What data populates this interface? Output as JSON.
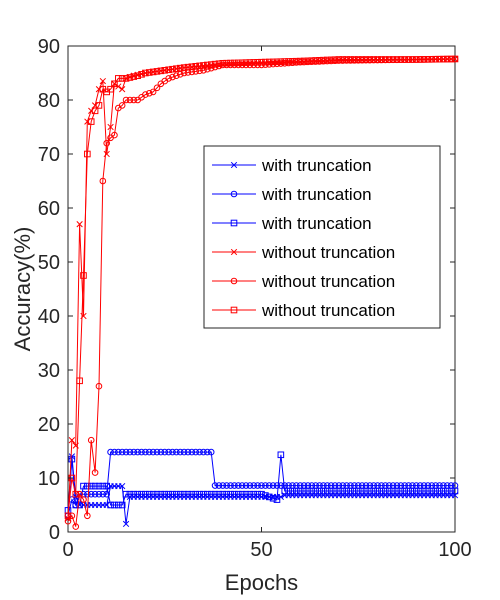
{
  "chart_data": {
    "type": "line",
    "title": "",
    "xlabel": "Epochs",
    "ylabel": "Accuracy(%)",
    "xlim": [
      0,
      100
    ],
    "ylim": [
      0,
      90
    ],
    "xticks": [
      0,
      50,
      100
    ],
    "yticks": [
      0,
      10,
      20,
      30,
      40,
      50,
      60,
      70,
      80,
      90
    ],
    "grid": false,
    "legend_position": "center-right",
    "colors": {
      "with": "#0000ff",
      "without": "#ff0000",
      "axis": "#262626"
    },
    "series": [
      {
        "name": "with truncation",
        "color": "#0000ff",
        "marker": "x",
        "points": [
          [
            0,
            2.5
          ],
          [
            1,
            14
          ],
          [
            2,
            6.5
          ],
          [
            3,
            5
          ],
          [
            4,
            5
          ],
          [
            5,
            5
          ],
          [
            10,
            5
          ],
          [
            11,
            8.5
          ],
          [
            14,
            8.5
          ],
          [
            15,
            1.5
          ],
          [
            16,
            6.5
          ],
          [
            20,
            6.5
          ],
          [
            50,
            6.5
          ],
          [
            55,
            6.5
          ],
          [
            56,
            6.8
          ],
          [
            100,
            6.8
          ]
        ]
      },
      {
        "name": "with truncation",
        "color": "#0000ff",
        "marker": "o",
        "points": [
          [
            0,
            3
          ],
          [
            1,
            6
          ],
          [
            2,
            5
          ],
          [
            3,
            7
          ],
          [
            4,
            7
          ],
          [
            5,
            7
          ],
          [
            10,
            7
          ],
          [
            11,
            14.8
          ],
          [
            37,
            14.8
          ],
          [
            38,
            8.6
          ],
          [
            100,
            8.6
          ]
        ]
      },
      {
        "name": "with truncation",
        "color": "#0000ff",
        "marker": "s",
        "points": [
          [
            0,
            4
          ],
          [
            1,
            13.5
          ],
          [
            2,
            5
          ],
          [
            3,
            5
          ],
          [
            4,
            8.5
          ],
          [
            5,
            8.5
          ],
          [
            10,
            8.5
          ],
          [
            11,
            5
          ],
          [
            14,
            5
          ],
          [
            15,
            7
          ],
          [
            50,
            7
          ],
          [
            54,
            6
          ],
          [
            55,
            14.3
          ],
          [
            56,
            7.6
          ],
          [
            100,
            7.6
          ]
        ]
      },
      {
        "name": "without truncation",
        "color": "#ff0000",
        "marker": "x",
        "points": [
          [
            0,
            2.5
          ],
          [
            1,
            17
          ],
          [
            2,
            16
          ],
          [
            3,
            57
          ],
          [
            4,
            40
          ],
          [
            5,
            76
          ],
          [
            6,
            78
          ],
          [
            7,
            79
          ],
          [
            8,
            82
          ],
          [
            9,
            83.5
          ],
          [
            10,
            70
          ],
          [
            11,
            75
          ],
          [
            12,
            83
          ],
          [
            13,
            82.5
          ],
          [
            14,
            82
          ],
          [
            15,
            84
          ],
          [
            17,
            84.5
          ],
          [
            20,
            85
          ],
          [
            25,
            85.5
          ],
          [
            30,
            86
          ],
          [
            40,
            86.5
          ],
          [
            50,
            86.8
          ],
          [
            60,
            87
          ],
          [
            70,
            87.3
          ],
          [
            80,
            87.4
          ],
          [
            90,
            87.5
          ],
          [
            100,
            87.6
          ]
        ]
      },
      {
        "name": "without truncation",
        "color": "#ff0000",
        "marker": "o",
        "points": [
          [
            0,
            2
          ],
          [
            1,
            3
          ],
          [
            2,
            1
          ],
          [
            3,
            7
          ],
          [
            4,
            6
          ],
          [
            5,
            3
          ],
          [
            6,
            17
          ],
          [
            7,
            11
          ],
          [
            8,
            27
          ],
          [
            9,
            65
          ],
          [
            10,
            72
          ],
          [
            11,
            73
          ],
          [
            12,
            73.5
          ],
          [
            13,
            78.5
          ],
          [
            14,
            79
          ],
          [
            15,
            80
          ],
          [
            18,
            80
          ],
          [
            20,
            81
          ],
          [
            22,
            81.5
          ],
          [
            24,
            83
          ],
          [
            26,
            84
          ],
          [
            28,
            84.5
          ],
          [
            30,
            85
          ],
          [
            35,
            85.5
          ],
          [
            40,
            86.5
          ],
          [
            50,
            86.5
          ],
          [
            60,
            87
          ],
          [
            70,
            87.3
          ],
          [
            80,
            87.4
          ],
          [
            90,
            87.5
          ],
          [
            100,
            87.6
          ]
        ]
      },
      {
        "name": "without truncation",
        "color": "#ff0000",
        "marker": "s",
        "points": [
          [
            0,
            3
          ],
          [
            1,
            10
          ],
          [
            2,
            7
          ],
          [
            3,
            28
          ],
          [
            4,
            47.5
          ],
          [
            5,
            70
          ],
          [
            6,
            76
          ],
          [
            7,
            78
          ],
          [
            8,
            79
          ],
          [
            9,
            82
          ],
          [
            10,
            81.5
          ],
          [
            11,
            82
          ],
          [
            12,
            83
          ],
          [
            13,
            84
          ],
          [
            15,
            84
          ],
          [
            18,
            84.5
          ],
          [
            20,
            85
          ],
          [
            25,
            85.5
          ],
          [
            30,
            86
          ],
          [
            40,
            86.8
          ],
          [
            50,
            87
          ],
          [
            60,
            87.2
          ],
          [
            70,
            87.5
          ],
          [
            80,
            87.5
          ],
          [
            90,
            87.5
          ],
          [
            100,
            87.6
          ]
        ]
      }
    ]
  }
}
